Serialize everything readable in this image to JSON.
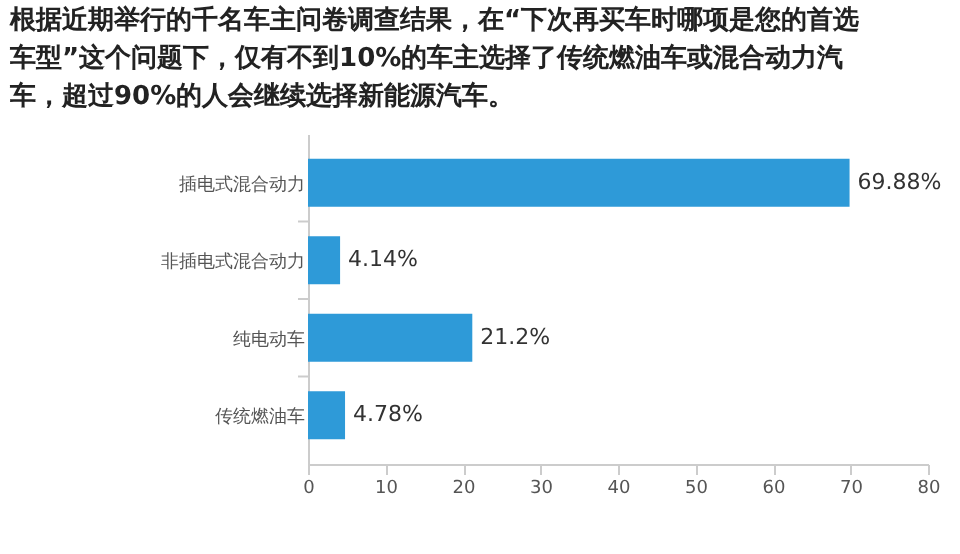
{
  "chart_data": {
    "type": "bar",
    "orientation": "horizontal",
    "title": "根据近期举行的千名车主问卷调查结果，在“下次再买车时哪项是您的首选车型”这个问题下，仅有不到10%的车主选择了传统燃油车或混合动力汽车，超过90%的人会继续选择新能源汽车。",
    "categories": [
      "插电式混合动力",
      "非插电式混合动力",
      "纯电动车",
      "传统燃油车"
    ],
    "values": [
      69.88,
      4.14,
      21.2,
      4.78
    ],
    "value_labels": [
      "69.88%",
      "4.14%",
      "21.2%",
      "4.78%"
    ],
    "color": "#2e9ad8",
    "xlim": [
      0,
      80
    ],
    "xticks": [
      0,
      10,
      20,
      30,
      40,
      50,
      60,
      70,
      80
    ],
    "grid": false
  }
}
